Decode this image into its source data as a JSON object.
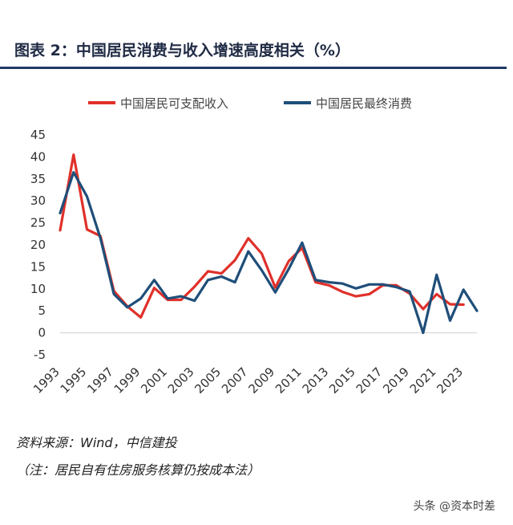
{
  "header": {
    "title": "图表  2：中国居民消费与收入增速高度相关（%）"
  },
  "colors": {
    "income": "#e0302a",
    "consumption": "#1f4e79",
    "title_rule": "#1f3864"
  },
  "chart_data": {
    "type": "line",
    "title": "",
    "xlabel": "",
    "ylabel": "",
    "ylim": [
      -5,
      45
    ],
    "yticks": [
      -5,
      0,
      5,
      10,
      15,
      20,
      25,
      30,
      35,
      40,
      45
    ],
    "xlim": [
      1993,
      2024
    ],
    "xticks": [
      "1993",
      "1995",
      "1997",
      "1999",
      "2001",
      "2003",
      "2005",
      "2007",
      "2009",
      "2011",
      "2013",
      "2015",
      "2017",
      "2019",
      "2021",
      "2023"
    ],
    "legend_position": "top",
    "grid": false,
    "series": [
      {
        "name": "中国居民可支配收入",
        "color": "#e0302a",
        "x": [
          1993,
          1994,
          1995,
          1996,
          1997,
          1998,
          1999,
          2000,
          2001,
          2002,
          2003,
          2004,
          2005,
          2006,
          2007,
          2008,
          2009,
          2010,
          2011,
          2012,
          2013,
          2014,
          2015,
          2016,
          2017,
          2018,
          2019,
          2020,
          2021,
          2022,
          2023
        ],
        "y": [
          23.3,
          40.5,
          23.5,
          22.0,
          9.5,
          6.0,
          3.5,
          10.2,
          7.5,
          7.5,
          10.5,
          14.0,
          13.5,
          16.5,
          21.5,
          18.0,
          10.3,
          16.3,
          19.3,
          11.5,
          10.8,
          9.3,
          8.3,
          8.8,
          10.8,
          10.8,
          8.9,
          5.4,
          8.8,
          6.5,
          6.4
        ]
      },
      {
        "name": "中国居民最终消费",
        "color": "#1f4e79",
        "x": [
          1993,
          1994,
          1995,
          1996,
          1997,
          1998,
          1999,
          2000,
          2001,
          2002,
          2003,
          2004,
          2005,
          2006,
          2007,
          2008,
          2009,
          2010,
          2011,
          2012,
          2013,
          2014,
          2015,
          2016,
          2017,
          2018,
          2019,
          2020,
          2021,
          2022,
          2023,
          2024
        ],
        "y": [
          27.2,
          36.5,
          31.0,
          21.5,
          8.8,
          5.8,
          7.8,
          12.0,
          7.8,
          8.3,
          7.3,
          12.0,
          12.8,
          11.5,
          18.5,
          14.2,
          9.2,
          14.5,
          20.5,
          12.0,
          11.5,
          11.2,
          10.1,
          11.0,
          11.0,
          10.4,
          9.4,
          0.0,
          13.2,
          2.8,
          9.8,
          5.0
        ]
      }
    ]
  },
  "footer": {
    "source": "资料来源：Wind，中信建投",
    "note": "（注：居民自有住房服务核算仍按成本法）",
    "watermark": "头条 @资本时差"
  }
}
